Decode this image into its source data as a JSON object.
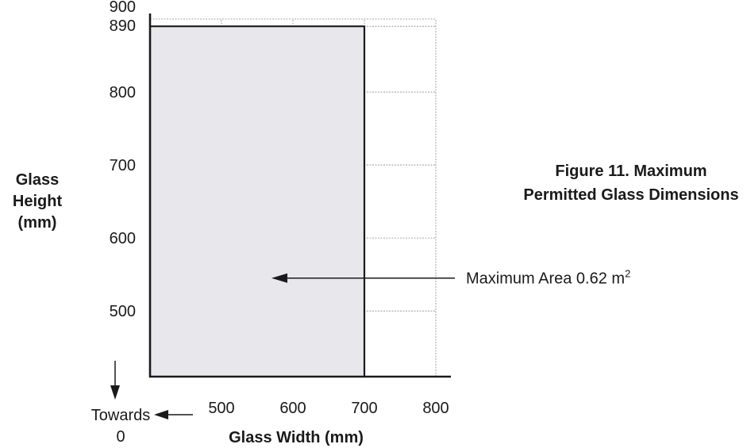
{
  "chart_data": {
    "type": "area",
    "title": "Figure 11. Maximum Permitted Glass Dimensions",
    "title_lines": [
      "Figure 11. Maximum",
      "Permitted Glass Dimensions"
    ],
    "xlabel": "Glass Width (mm)",
    "ylabel": "Glass Height (mm)",
    "ylabel_lines": [
      "Glass",
      "Height",
      "(mm)"
    ],
    "x_ticks": [
      500,
      600,
      700,
      800
    ],
    "y_ticks": [
      900,
      890,
      800,
      700,
      600,
      500
    ],
    "xlim": [
      400,
      800
    ],
    "ylim": [
      410,
      900
    ],
    "grid": true,
    "region": {
      "x": [
        400,
        700
      ],
      "y": [
        410,
        890
      ],
      "fill": "#e8e8ec"
    },
    "annotation": {
      "text": "Maximum Area 0.62 m",
      "superscript": "2",
      "point": [
        570,
        545
      ]
    },
    "origin_note": {
      "line1": "Towards",
      "line2": "0"
    }
  }
}
